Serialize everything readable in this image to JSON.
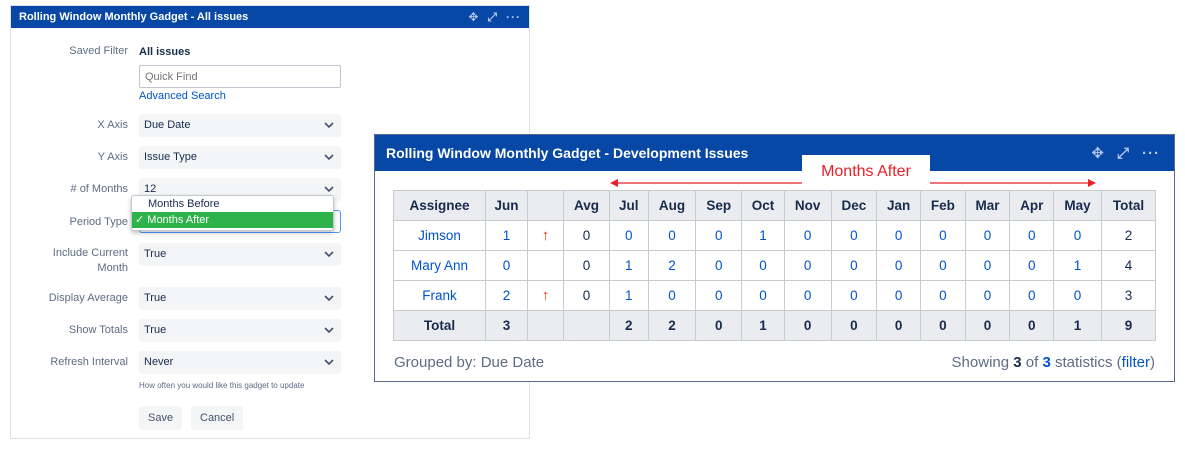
{
  "config_gadget": {
    "title": "Rolling Window Monthly Gadget - All issues",
    "saved_filter": {
      "label": "Saved Filter",
      "value": "All issues"
    },
    "quick_find": {
      "placeholder": "Quick Find"
    },
    "advanced_search": "Advanced Search",
    "x_axis": {
      "label": "X Axis",
      "value": "Due Date"
    },
    "y_axis": {
      "label": "Y Axis",
      "value": "Issue Type"
    },
    "num_months": {
      "label": "# of Months",
      "value": "12"
    },
    "period_type": {
      "label": "Period Type",
      "options": [
        "Months Before",
        "Months After"
      ],
      "selected": "Months After"
    },
    "include_current": {
      "label_line1": "Include Current",
      "label_line2": "Month",
      "value": "True"
    },
    "display_average": {
      "label": "Display Average",
      "value": "True"
    },
    "show_totals": {
      "label": "Show Totals",
      "value": "True"
    },
    "refresh_interval": {
      "label": "Refresh Interval",
      "value": "Never",
      "hint": "How often you would like this gadget to update"
    },
    "save_label": "Save",
    "cancel_label": "Cancel"
  },
  "results_gadget": {
    "title": "Rolling Window Monthly Gadget - Development Issues",
    "annotation": "Months After",
    "columns": [
      "Assignee",
      "Jun",
      "",
      "Avg",
      "Jul",
      "Aug",
      "Sep",
      "Oct",
      "Nov",
      "Dec",
      "Jan",
      "Feb",
      "Mar",
      "Apr",
      "May",
      "Total"
    ],
    "rows": [
      {
        "assignee": "Jimson",
        "jun": "1",
        "arrow": "↑",
        "avg": "0",
        "months": [
          "0",
          "0",
          "0",
          "1",
          "0",
          "0",
          "0",
          "0",
          "0",
          "0",
          "0"
        ],
        "total": "2"
      },
      {
        "assignee": "Mary Ann",
        "jun": "0",
        "arrow": "",
        "avg": "0",
        "months": [
          "1",
          "2",
          "0",
          "0",
          "0",
          "0",
          "0",
          "0",
          "0",
          "0",
          "1"
        ],
        "total": "4"
      },
      {
        "assignee": "Frank",
        "jun": "2",
        "arrow": "↑",
        "avg": "0",
        "months": [
          "1",
          "0",
          "0",
          "0",
          "0",
          "0",
          "0",
          "0",
          "0",
          "0",
          "0"
        ],
        "total": "3"
      }
    ],
    "totals_row": {
      "label": "Total",
      "jun": "3",
      "months": [
        "2",
        "2",
        "0",
        "1",
        "0",
        "0",
        "0",
        "0",
        "0",
        "0",
        "1"
      ],
      "total": "9"
    },
    "grouped_by": "Grouped by: Due Date",
    "showing": {
      "prefix": "Showing ",
      "count": "3",
      "mid": " of ",
      "total": "3",
      "suffix": " statistics (",
      "link": "filter",
      "end": ")"
    }
  },
  "icons": [
    "move-icon",
    "expand-icon",
    "more-icon",
    "chevron-down-icon",
    "checkmark-icon",
    "up-arrow-icon"
  ],
  "colors": {
    "header_blue": "#0747a6",
    "link_blue": "#0052cc",
    "selected_green": "#2db34a",
    "annotation_red": "#e8202a"
  }
}
